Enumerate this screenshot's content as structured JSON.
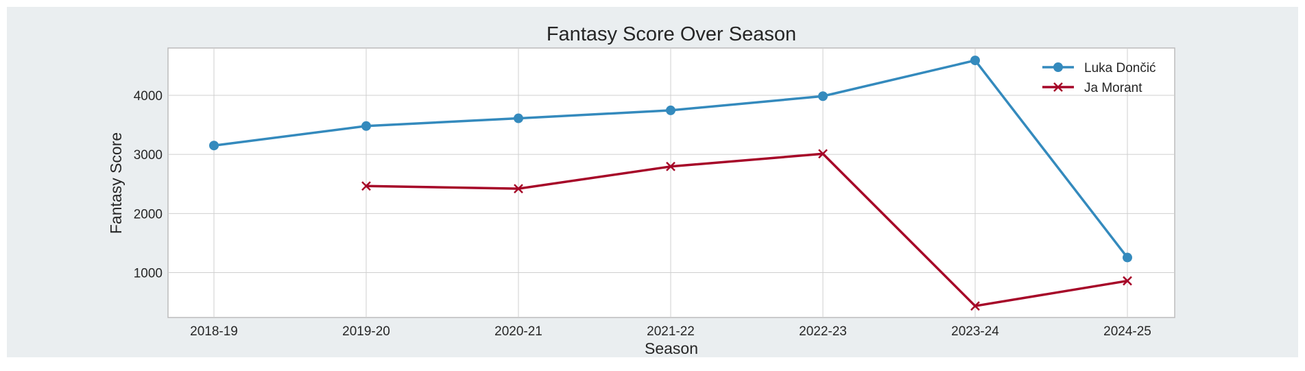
{
  "chart_data": {
    "type": "line",
    "title": "Fantasy Score Over Season",
    "xlabel": "Season",
    "ylabel": "Fantasy Score",
    "categories": [
      "2018-19",
      "2019-20",
      "2020-21",
      "2021-22",
      "2022-23",
      "2023-24",
      "2024-25"
    ],
    "ylim": [
      240,
      4800
    ],
    "yticks": [
      1000,
      2000,
      3000,
      4000
    ],
    "grid": true,
    "legend_position": "top-right",
    "series": [
      {
        "name": "Luka Dončić",
        "color": "#348abd",
        "marker": "circle",
        "values": [
          3150,
          3480,
          3610,
          3745,
          3985,
          4590,
          1255
        ]
      },
      {
        "name": "Ja Morant",
        "color": "#a60628",
        "marker": "x",
        "values": [
          null,
          2465,
          2420,
          2795,
          3010,
          435,
          860
        ]
      }
    ]
  }
}
